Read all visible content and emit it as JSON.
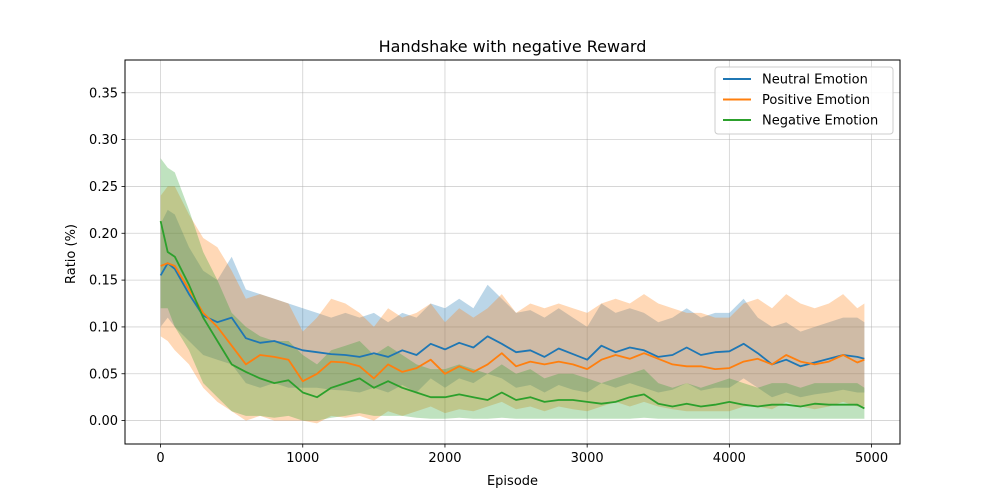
{
  "chart_data": {
    "type": "line",
    "title": "Handshake with negative Reward",
    "xlabel": "Episode",
    "ylabel": "Ratio (%)",
    "xlim": [
      -250,
      5200
    ],
    "ylim": [
      -0.025,
      0.385
    ],
    "xticks": [
      0,
      1000,
      2000,
      3000,
      4000,
      5000
    ],
    "yticks": [
      0.0,
      0.05,
      0.1,
      0.15,
      0.2,
      0.25,
      0.3,
      0.35
    ],
    "xtick_labels": [
      "0",
      "1000",
      "2000",
      "3000",
      "4000",
      "5000"
    ],
    "ytick_labels": [
      "0.00",
      "0.05",
      "0.10",
      "0.15",
      "0.20",
      "0.25",
      "0.30",
      "0.35"
    ],
    "grid": true,
    "legend_position": "top-right",
    "x": [
      0,
      50,
      100,
      200,
      300,
      400,
      500,
      600,
      700,
      800,
      900,
      1000,
      1100,
      1200,
      1300,
      1400,
      1500,
      1600,
      1700,
      1800,
      1900,
      2000,
      2100,
      2200,
      2300,
      2400,
      2500,
      2600,
      2700,
      2800,
      2900,
      3000,
      3100,
      3200,
      3300,
      3400,
      3500,
      3600,
      3700,
      3800,
      3900,
      4000,
      4100,
      4200,
      4300,
      4400,
      4500,
      4600,
      4700,
      4800,
      4900,
      4950
    ],
    "series": [
      {
        "name": "Neutral Emotion",
        "color": "#1f77b4",
        "values": [
          0.155,
          0.168,
          0.162,
          0.135,
          0.112,
          0.105,
          0.11,
          0.088,
          0.083,
          0.085,
          0.08,
          0.075,
          0.073,
          0.071,
          0.07,
          0.068,
          0.072,
          0.068,
          0.075,
          0.07,
          0.082,
          0.076,
          0.083,
          0.078,
          0.09,
          0.082,
          0.073,
          0.075,
          0.068,
          0.077,
          0.071,
          0.065,
          0.08,
          0.073,
          0.078,
          0.075,
          0.068,
          0.07,
          0.078,
          0.07,
          0.073,
          0.074,
          0.082,
          0.072,
          0.06,
          0.065,
          0.058,
          0.062,
          0.066,
          0.07,
          0.068,
          0.066
        ],
        "lower": [
          0.1,
          0.11,
          0.1,
          0.085,
          0.07,
          0.065,
          0.06,
          0.04,
          0.035,
          0.04,
          0.035,
          0.035,
          0.035,
          0.033,
          0.032,
          0.03,
          0.035,
          0.03,
          0.038,
          0.03,
          0.045,
          0.035,
          0.045,
          0.04,
          0.05,
          0.045,
          0.035,
          0.038,
          0.03,
          0.038,
          0.033,
          0.03,
          0.04,
          0.035,
          0.04,
          0.035,
          0.03,
          0.033,
          0.04,
          0.032,
          0.035,
          0.035,
          0.045,
          0.035,
          0.025,
          0.03,
          0.025,
          0.028,
          0.03,
          0.033,
          0.03,
          0.03
        ],
        "upper": [
          0.21,
          0.225,
          0.22,
          0.185,
          0.16,
          0.15,
          0.175,
          0.14,
          0.135,
          0.13,
          0.125,
          0.12,
          0.115,
          0.11,
          0.115,
          0.11,
          0.115,
          0.105,
          0.115,
          0.11,
          0.125,
          0.12,
          0.13,
          0.12,
          0.145,
          0.13,
          0.115,
          0.118,
          0.11,
          0.12,
          0.11,
          0.1,
          0.125,
          0.115,
          0.12,
          0.115,
          0.105,
          0.11,
          0.12,
          0.11,
          0.115,
          0.115,
          0.13,
          0.11,
          0.1,
          0.105,
          0.095,
          0.1,
          0.105,
          0.11,
          0.11,
          0.105
        ]
      },
      {
        "name": "Positive Emotion",
        "color": "#ff7f0e",
        "values": [
          0.165,
          0.168,
          0.165,
          0.14,
          0.115,
          0.1,
          0.08,
          0.06,
          0.07,
          0.068,
          0.065,
          0.042,
          0.05,
          0.063,
          0.062,
          0.058,
          0.045,
          0.06,
          0.052,
          0.056,
          0.065,
          0.05,
          0.058,
          0.052,
          0.06,
          0.072,
          0.058,
          0.063,
          0.06,
          0.063,
          0.06,
          0.055,
          0.065,
          0.07,
          0.066,
          0.072,
          0.066,
          0.06,
          0.058,
          0.058,
          0.055,
          0.056,
          0.063,
          0.066,
          0.06,
          0.07,
          0.063,
          0.06,
          0.063,
          0.07,
          0.062,
          0.065
        ],
        "lower": [
          0.09,
          0.085,
          0.075,
          0.06,
          0.035,
          0.02,
          0.01,
          0.0,
          0.005,
          0.0,
          0.0,
          0.0,
          -0.003,
          0.005,
          0.003,
          0.005,
          0.0,
          0.01,
          0.005,
          0.01,
          0.015,
          0.008,
          0.012,
          0.01,
          0.015,
          0.02,
          0.012,
          0.015,
          0.01,
          0.015,
          0.012,
          0.01,
          0.015,
          0.02,
          0.015,
          0.02,
          0.015,
          0.012,
          0.01,
          0.01,
          0.01,
          0.01,
          0.015,
          0.015,
          0.012,
          0.02,
          0.015,
          0.012,
          0.015,
          0.02,
          0.015,
          0.015
        ],
        "upper": [
          0.24,
          0.25,
          0.25,
          0.22,
          0.195,
          0.185,
          0.16,
          0.13,
          0.135,
          0.13,
          0.125,
          0.095,
          0.11,
          0.13,
          0.125,
          0.115,
          0.1,
          0.12,
          0.11,
          0.115,
          0.125,
          0.105,
          0.12,
          0.11,
          0.12,
          0.135,
          0.115,
          0.125,
          0.12,
          0.125,
          0.12,
          0.115,
          0.125,
          0.13,
          0.125,
          0.135,
          0.125,
          0.12,
          0.115,
          0.115,
          0.11,
          0.11,
          0.125,
          0.13,
          0.12,
          0.135,
          0.125,
          0.12,
          0.125,
          0.135,
          0.12,
          0.125
        ]
      },
      {
        "name": "Negative Emotion",
        "color": "#2ca02c",
        "values": [
          0.213,
          0.18,
          0.175,
          0.145,
          0.11,
          0.085,
          0.06,
          0.052,
          0.045,
          0.04,
          0.043,
          0.03,
          0.025,
          0.035,
          0.04,
          0.045,
          0.035,
          0.042,
          0.035,
          0.03,
          0.025,
          0.025,
          0.028,
          0.025,
          0.022,
          0.03,
          0.022,
          0.025,
          0.02,
          0.022,
          0.022,
          0.02,
          0.018,
          0.02,
          0.025,
          0.028,
          0.018,
          0.015,
          0.018,
          0.015,
          0.017,
          0.02,
          0.017,
          0.015,
          0.017,
          0.017,
          0.015,
          0.018,
          0.017,
          0.017,
          0.017,
          0.013
        ],
        "lower": [
          0.12,
          0.12,
          0.1,
          0.075,
          0.04,
          0.025,
          0.01,
          0.005,
          0.005,
          0.003,
          0.005,
          0.0,
          0.0,
          0.003,
          0.005,
          0.008,
          0.005,
          0.005,
          0.005,
          0.003,
          0.002,
          0.002,
          0.003,
          0.002,
          0.002,
          0.003,
          0.002,
          0.002,
          0.002,
          0.002,
          0.002,
          0.002,
          0.002,
          0.002,
          0.002,
          0.003,
          0.002,
          0.002,
          0.002,
          0.002,
          0.002,
          0.002,
          0.002,
          0.002,
          0.002,
          0.002,
          0.002,
          0.002,
          0.002,
          0.002,
          0.002,
          0.002
        ],
        "upper": [
          0.28,
          0.27,
          0.265,
          0.225,
          0.18,
          0.15,
          0.115,
          0.1,
          0.09,
          0.085,
          0.085,
          0.07,
          0.06,
          0.075,
          0.08,
          0.085,
          0.07,
          0.08,
          0.07,
          0.06,
          0.055,
          0.055,
          0.06,
          0.055,
          0.05,
          0.06,
          0.05,
          0.055,
          0.045,
          0.05,
          0.05,
          0.045,
          0.04,
          0.045,
          0.05,
          0.055,
          0.04,
          0.035,
          0.04,
          0.035,
          0.04,
          0.045,
          0.04,
          0.035,
          0.04,
          0.04,
          0.035,
          0.04,
          0.04,
          0.04,
          0.04,
          0.035
        ]
      }
    ]
  }
}
